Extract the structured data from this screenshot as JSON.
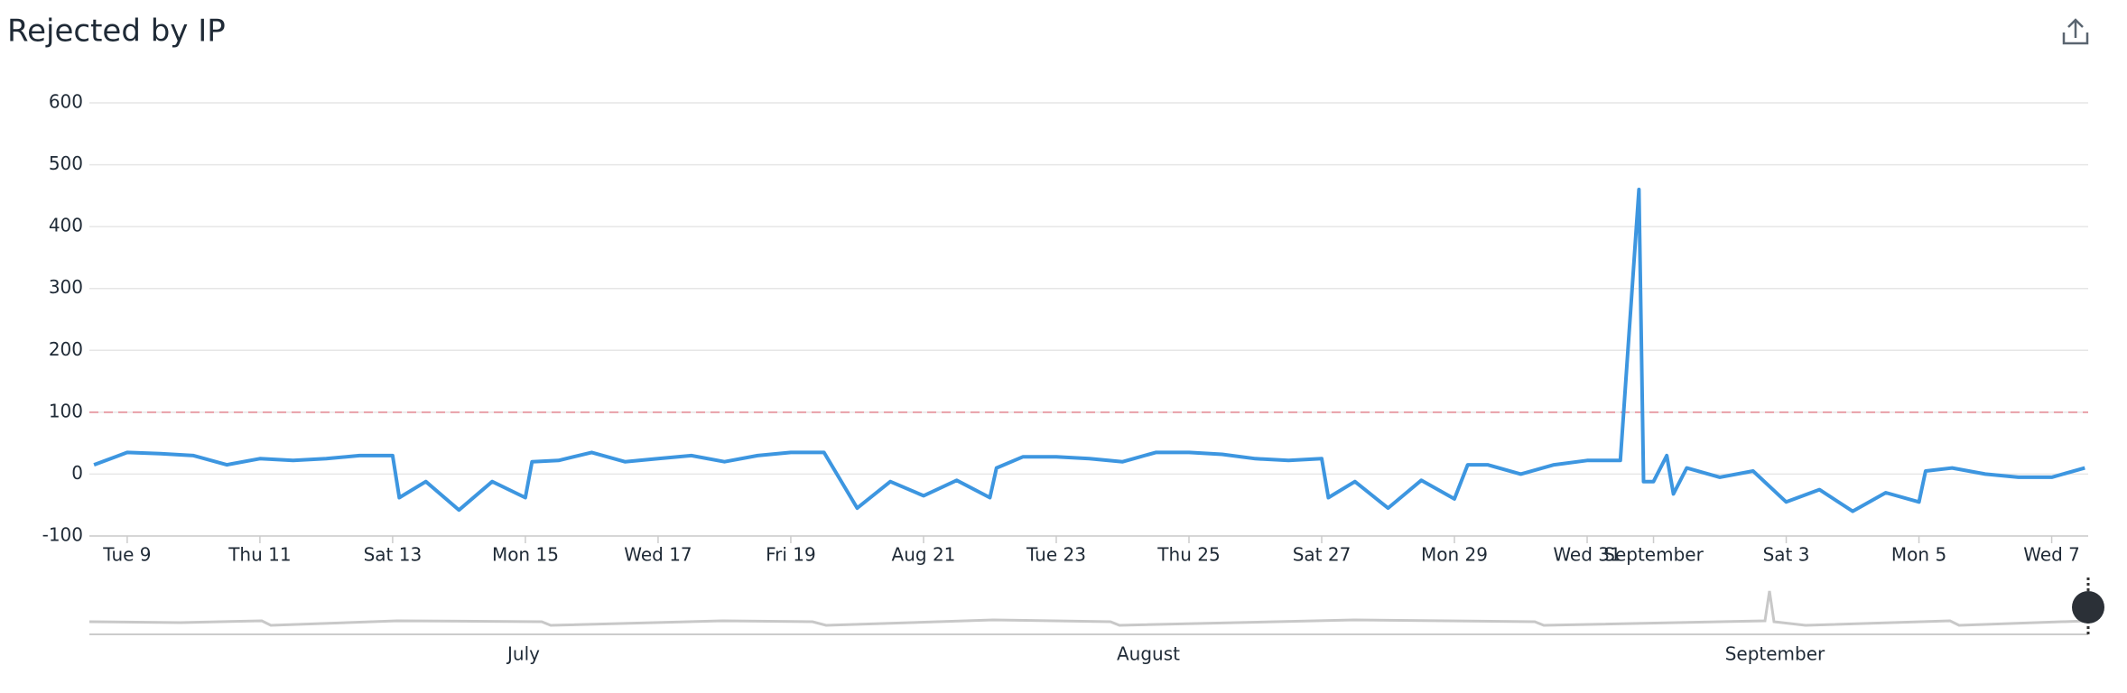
{
  "chart_data": {
    "type": "line",
    "title": "Rejected by IP",
    "x": [
      8.5,
      9,
      9.5,
      10,
      10.5,
      11,
      11.5,
      12,
      12.5,
      13,
      13.1,
      13.5,
      14,
      14.5,
      15,
      15.1,
      15.5,
      16,
      16.5,
      17,
      17.5,
      18,
      18.5,
      19,
      19.5,
      20,
      20.5,
      21,
      21.5,
      22,
      22.1,
      22.5,
      23,
      23.5,
      24,
      24.5,
      25,
      25.5,
      26,
      26.5,
      27,
      27.1,
      27.5,
      28,
      28.5,
      29,
      29.2,
      29.5,
      30,
      30.5,
      31,
      31.5,
      31.78,
      31.85,
      32,
      32.2,
      32.3,
      32.5,
      33,
      33.5,
      34,
      34.5,
      35,
      35.5,
      36,
      36.1,
      36.5,
      37,
      37.5,
      38,
      38.5
    ],
    "series": [
      {
        "name": "Rejected by IP",
        "color": "#3d96e0",
        "values": [
          15,
          35,
          33,
          30,
          15,
          25,
          22,
          25,
          30,
          30,
          -38,
          -12,
          -58,
          -12,
          -38,
          20,
          22,
          35,
          20,
          25,
          30,
          20,
          30,
          35,
          35,
          -55,
          -12,
          -35,
          -10,
          -38,
          10,
          28,
          28,
          25,
          20,
          35,
          35,
          32,
          25,
          22,
          25,
          -38,
          -12,
          -55,
          -10,
          -40,
          15,
          15,
          0,
          15,
          22,
          22,
          460,
          -12,
          -12,
          30,
          -32,
          10,
          -5,
          5,
          -45,
          -25,
          -60,
          -30,
          -45,
          5,
          10,
          0,
          -5,
          -5,
          10
        ]
      }
    ],
    "threshold": 100,
    "threshold_color": "#e8a0a8",
    "xlim": [
      8.43,
      38.55
    ],
    "xticks": [
      {
        "value": 9,
        "label": "Tue 9"
      },
      {
        "value": 11,
        "label": "Thu 11"
      },
      {
        "value": 13,
        "label": "Sat 13"
      },
      {
        "value": 15,
        "label": "Mon 15"
      },
      {
        "value": 17,
        "label": "Wed 17"
      },
      {
        "value": 19,
        "label": "Fri 19"
      },
      {
        "value": 21,
        "label": "Aug 21"
      },
      {
        "value": 23,
        "label": "Tue 23"
      },
      {
        "value": 25,
        "label": "Thu 25"
      },
      {
        "value": 27,
        "label": "Sat 27"
      },
      {
        "value": 29,
        "label": "Mon 29"
      },
      {
        "value": 31,
        "label": "Wed 31"
      },
      {
        "value": 32,
        "label": "September"
      },
      {
        "value": 34,
        "label": "Sat 3"
      },
      {
        "value": 36,
        "label": "Mon 5"
      },
      {
        "value": 38,
        "label": "Wed 7"
      }
    ],
    "ylim": [
      -100,
      600
    ],
    "yticks": [
      -100,
      0,
      100,
      200,
      300,
      400,
      500,
      600
    ],
    "grid": true
  },
  "navigator": {
    "labels": [
      "July",
      "August",
      "September"
    ]
  }
}
